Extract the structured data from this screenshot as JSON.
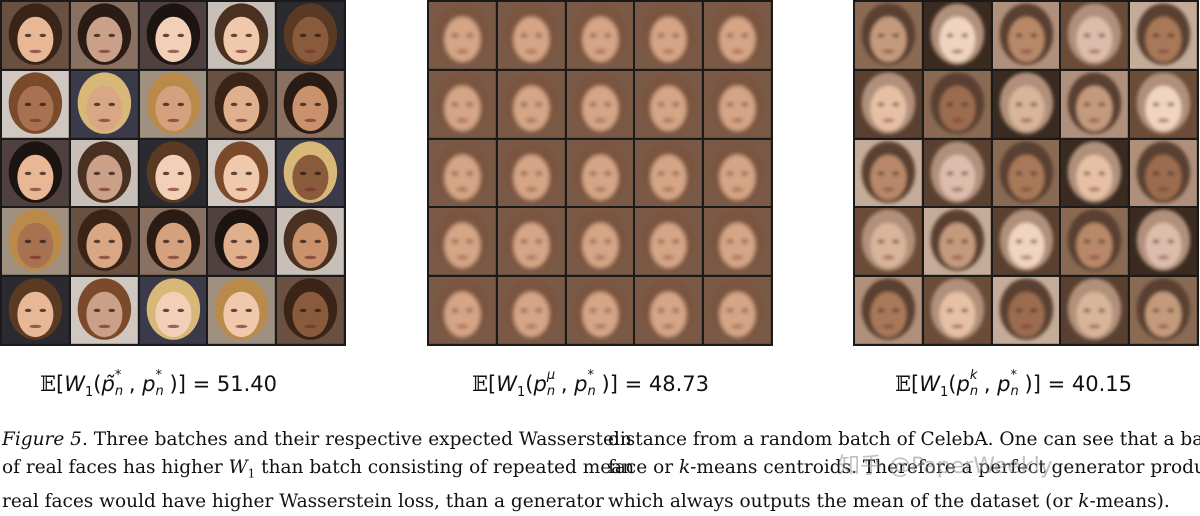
{
  "panels": [
    {
      "id": "real-faces",
      "kind": "real"
    },
    {
      "id": "mean-faces",
      "kind": "mean"
    },
    {
      "id": "kmeans-faces",
      "kind": "kmeans"
    }
  ],
  "metrics": {
    "real": {
      "func": "W",
      "value": "51.40"
    },
    "mean": {
      "func": "W",
      "value": "48.73"
    },
    "kmeans": {
      "func": "W",
      "value": "40.15"
    }
  },
  "caption": {
    "label": "Figure 5.",
    "line1_left": "Three batches and their respective expected Wasserstein",
    "line1_right": "distance from a random batch of CelebA. One can see that a batch",
    "line2_left_a": "of real faces has higher ",
    "line2_left_b": " than batch consisting of repeated mean",
    "line2_right_a": "face or ",
    "line2_right_b": "-means centroids. Therefore a perfect generator producing",
    "line3_left": "real faces would have higher Wasserstein loss, than a generator",
    "line3_right_a": "which always outputs the mean of the dataset (or ",
    "line3_right_b": "-means).",
    "k": "k",
    "w1": "W"
  },
  "watermark": "知乎 @PaperWeekly"
}
